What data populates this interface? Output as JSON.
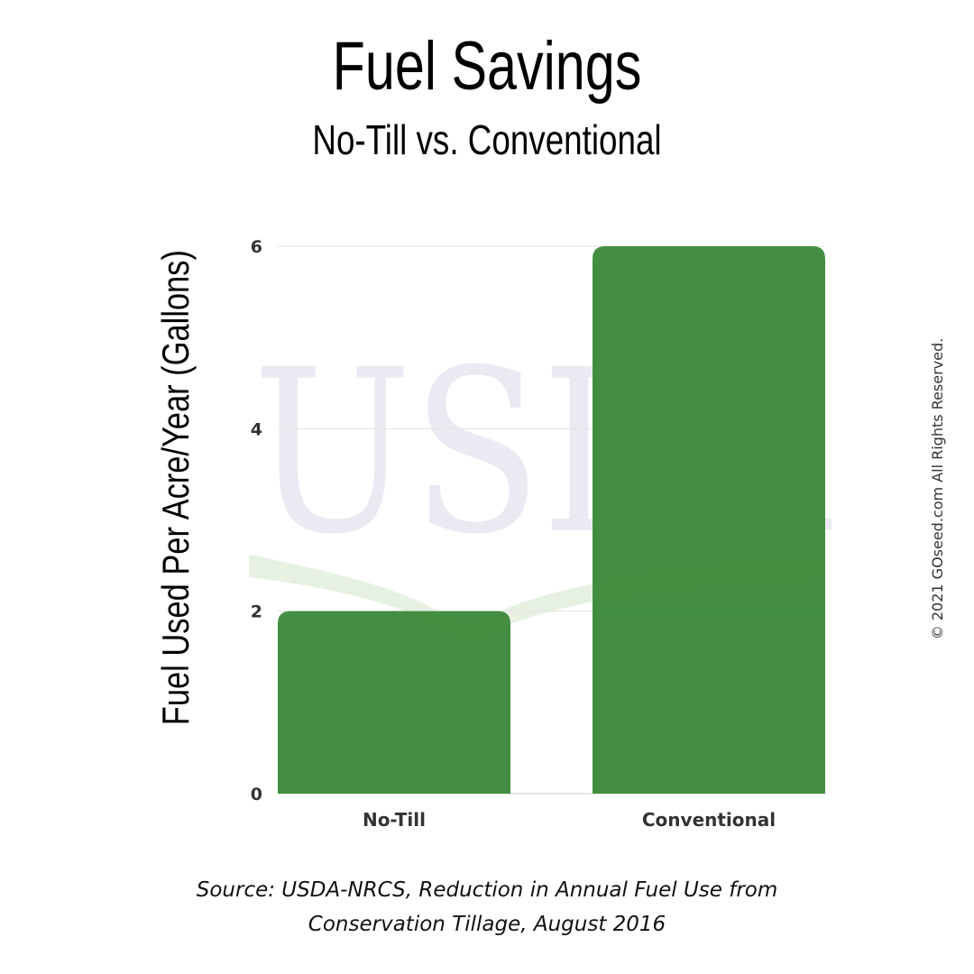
{
  "chart_data": {
    "type": "bar",
    "title": "Fuel Savings",
    "subtitle": "No-Till vs. Conventional",
    "ylabel": "Fuel Used Per Acre/Year (Gallons)",
    "xlabel": "",
    "categories": [
      "No-Till",
      "Conventional"
    ],
    "values": [
      2,
      6
    ],
    "ylim": [
      0,
      6
    ],
    "yticks": [
      0,
      2,
      4,
      6
    ],
    "grid": true,
    "bar_color": "#3d8a3a",
    "watermark": "USDA"
  },
  "source": {
    "line1": "Source: USDA-NRCS, Reduction in Annual Fuel Use from",
    "line2": "Conservation Tillage, August 2016"
  },
  "copyright": "© 2021 GOseed.com All Rights Reserved."
}
